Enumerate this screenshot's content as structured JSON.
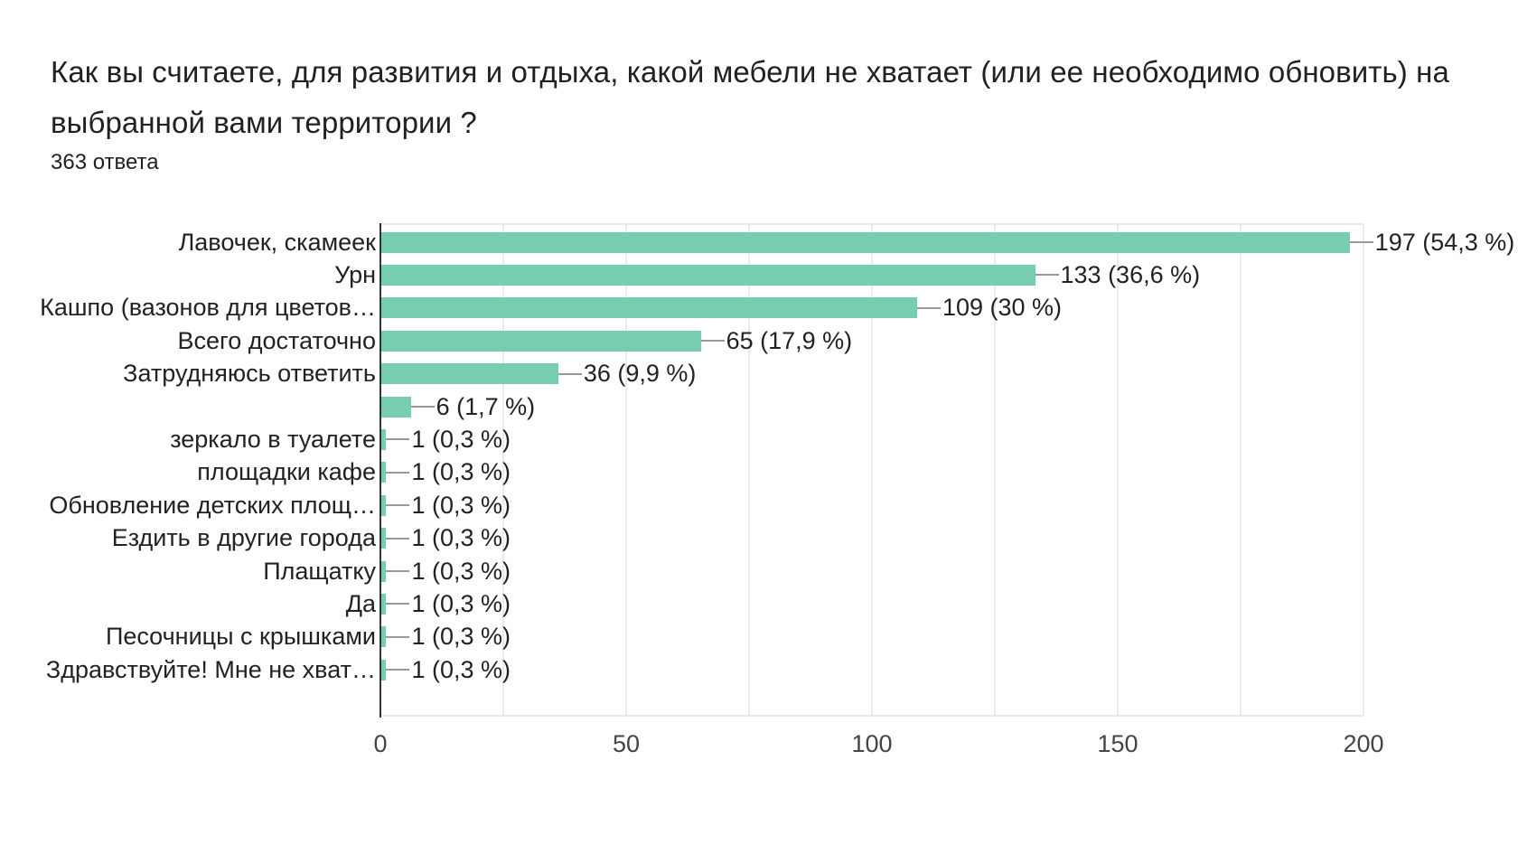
{
  "header": {
    "title": "Как вы считаете, для развития и отдыха, какой мебели не хватает (или ее необходимо обновить) на выбранной вами территории ?",
    "responses": "363 ответа"
  },
  "colors": {
    "bar": "#76cdb1",
    "grid": "#ebebeb",
    "axis": "#333333",
    "text": "#202124"
  },
  "chart_data": {
    "type": "bar",
    "orientation": "horizontal",
    "title": "Как вы считаете, для развития и отдыха, какой мебели не хватает (или ее необходимо обновить) на выбранной вами территории ?",
    "subtitle": "363 ответа",
    "categories": [
      "Лавочек, скамеек",
      "Урн",
      "Кашпо (вазонов для цветов…",
      "Всего достаточно",
      "Затрудняюсь ответить",
      "",
      "зеркало в туалете",
      "площадки кафе",
      "Обновление детских площ…",
      "Ездить в другие города",
      "Плащатку",
      "Да",
      "Песочницы с крышками",
      "Здравствуйте! Мне не хват…"
    ],
    "values": [
      197,
      133,
      109,
      65,
      36,
      6,
      1,
      1,
      1,
      1,
      1,
      1,
      1,
      1
    ],
    "labels": [
      "197 (54,3 %)",
      "133 (36,6 %)",
      "109 (30 %)",
      "65 (17,9 %)",
      "36 (9,9 %)",
      "6 (1,7 %)",
      "1 (0,3 %)",
      "1 (0,3 %)",
      "1 (0,3 %)",
      "1 (0,3 %)",
      "1 (0,3 %)",
      "1 (0,3 %)",
      "1 (0,3 %)",
      "1 (0,3 %)"
    ],
    "xlabel": "",
    "ylabel": "",
    "xlim": [
      0,
      200
    ],
    "xticks": [
      "0",
      "50",
      "100",
      "150",
      "200"
    ],
    "grid": true,
    "grid_step": 25,
    "legend": "none"
  }
}
